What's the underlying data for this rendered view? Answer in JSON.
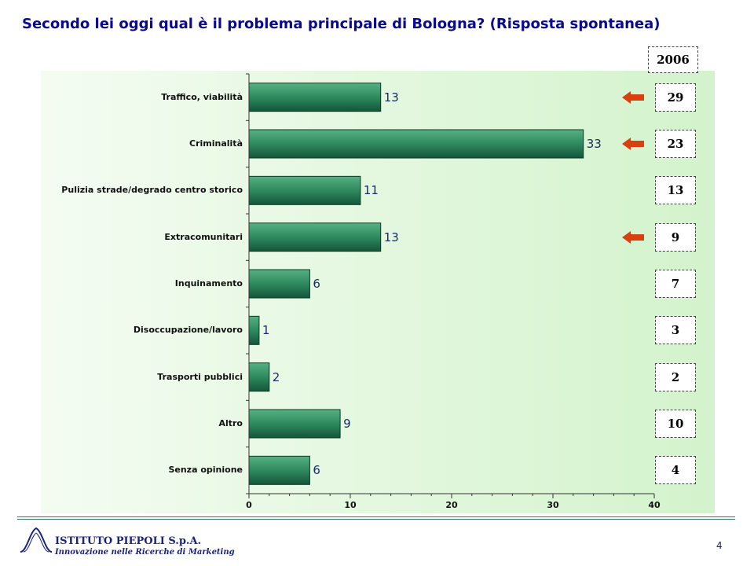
{
  "title": "Secondo lei oggi qual è il problema principale di Bologna? (Risposta spontanea)",
  "chart_data": {
    "type": "bar",
    "orientation": "horizontal",
    "categories": [
      "Traffico, viabilità",
      "Criminalità",
      "Pulizia strade/degrado centro storico",
      "Extracomunitari",
      "Inquinamento",
      "Disoccupazione/lavoro",
      "Trasporti pubblici",
      "Altro",
      "Senza opinione"
    ],
    "values": [
      13,
      33,
      11,
      13,
      6,
      1,
      2,
      9,
      6
    ],
    "xlim": [
      0,
      40
    ],
    "xticks": [
      0,
      10,
      20,
      30,
      40
    ],
    "bar_color": "#2e8a5e",
    "grid": false,
    "comparison": {
      "header": "2006",
      "values": [
        29,
        23,
        13,
        9,
        7,
        3,
        2,
        10,
        4
      ]
    },
    "arrows_on": [
      0,
      1,
      3
    ],
    "arrow_color": "#d9400f"
  },
  "footer": {
    "company": "ISTITUTO PIEPOLI S.p.A.",
    "tagline": "Innovazione nelle Ricerche di Marketing",
    "page_number": "4"
  }
}
